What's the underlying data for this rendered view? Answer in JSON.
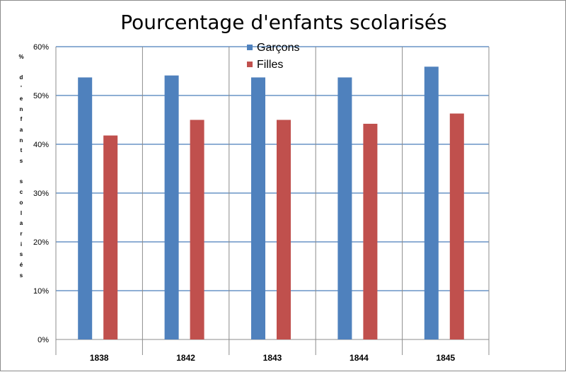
{
  "chart_data": {
    "type": "bar",
    "title": "Pourcentage d'enfants scolarisés",
    "xlabel": "",
    "ylabel": "% d'enfants scolarisés",
    "categories": [
      "1838",
      "1842",
      "1843",
      "1844",
      "1845"
    ],
    "series": [
      {
        "name": "Garçons",
        "color": "#4f81bd",
        "values": [
          53.7,
          54.1,
          53.7,
          53.7,
          55.9
        ]
      },
      {
        "name": "Filles",
        "color": "#c0504d",
        "values": [
          41.8,
          45.0,
          45.0,
          44.2,
          46.3
        ]
      }
    ],
    "ylim": [
      0,
      60
    ],
    "yticks": [
      "0%",
      "10%",
      "20%",
      "30%",
      "40%",
      "50%",
      "60%"
    ],
    "grid": true,
    "legend_position": "top-center"
  }
}
